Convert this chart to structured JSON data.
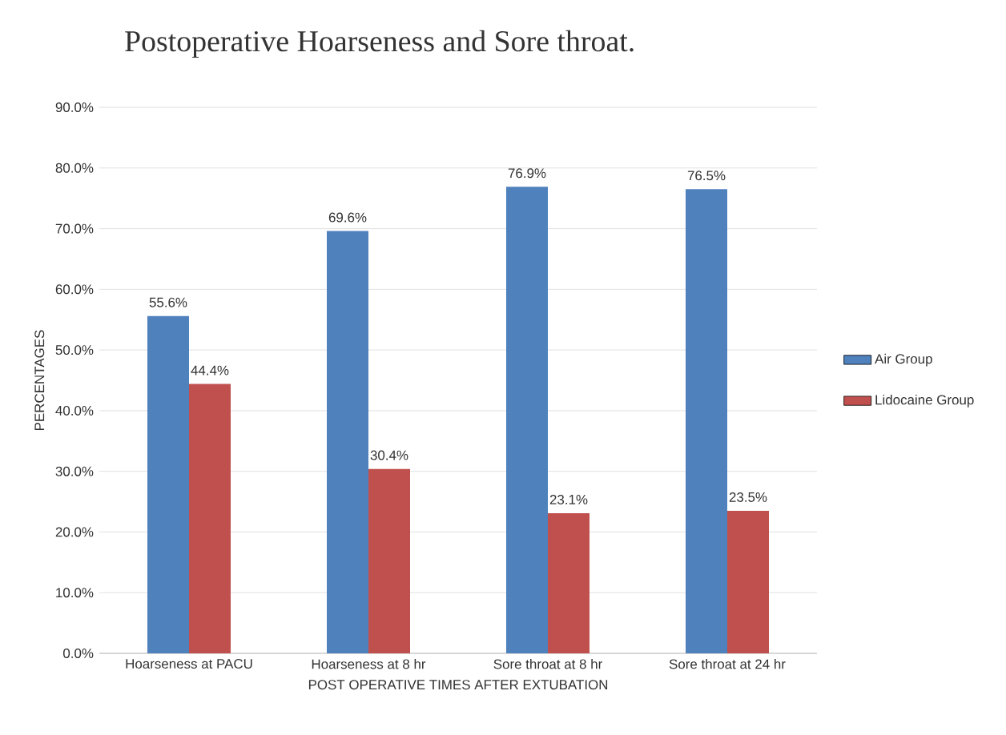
{
  "chart_data": {
    "type": "bar",
    "title": "Postoperative Hoarseness and Sore throat.",
    "xlabel": "POST OPERATIVE TIMES AFTER EXTUBATION",
    "ylabel": "PERCENTAGES",
    "categories": [
      "Hoarseness at PACU",
      "Hoarseness at 8 hr",
      "Sore throat at 8 hr",
      "Sore throat at 24 hr"
    ],
    "series": [
      {
        "name": "Air Group",
        "color": "#4f81bd",
        "values": [
          55.6,
          69.6,
          76.9,
          76.5
        ],
        "value_labels": [
          "55.6%",
          "69.6%",
          "76.9%",
          "76.5%"
        ]
      },
      {
        "name": "Lidocaine Group",
        "color": "#c0504d",
        "values": [
          44.4,
          30.4,
          23.1,
          23.5
        ],
        "value_labels": [
          "44.4%",
          "30.4%",
          "23.1%",
          "23.5%"
        ]
      }
    ],
    "ylim": [
      0,
      90
    ],
    "yticks": [
      {
        "value": 0,
        "label": "0.0%"
      },
      {
        "value": 10,
        "label": "10.0%"
      },
      {
        "value": 20,
        "label": "20.0%"
      },
      {
        "value": 30,
        "label": "30.0%"
      },
      {
        "value": 40,
        "label": "40.0%"
      },
      {
        "value": 50,
        "label": "50.0%"
      },
      {
        "value": 60,
        "label": "60.0%"
      },
      {
        "value": 70,
        "label": "70.0%"
      },
      {
        "value": 80,
        "label": "80.0%"
      },
      {
        "value": 90,
        "label": "90.0%"
      }
    ],
    "grid": "y",
    "legend": "right"
  }
}
